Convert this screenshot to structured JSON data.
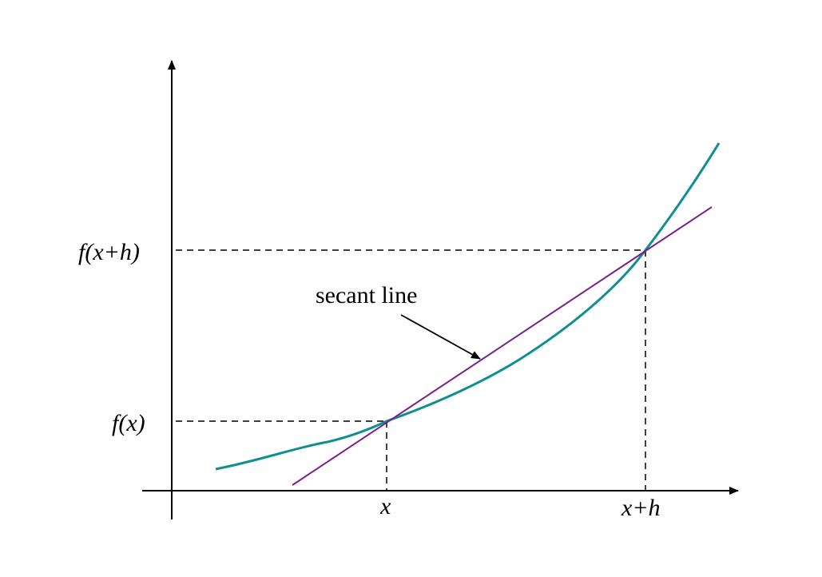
{
  "labels": {
    "fx_y": "f(x)",
    "fxh_y": "f(x+h)",
    "x_tick": "x",
    "xh_tick": "x+h",
    "secant": "secant line"
  },
  "colors": {
    "curve": "#0f8f8f",
    "secant": "#7a1f8c",
    "axes": "#000000",
    "guides": "#000000"
  }
}
